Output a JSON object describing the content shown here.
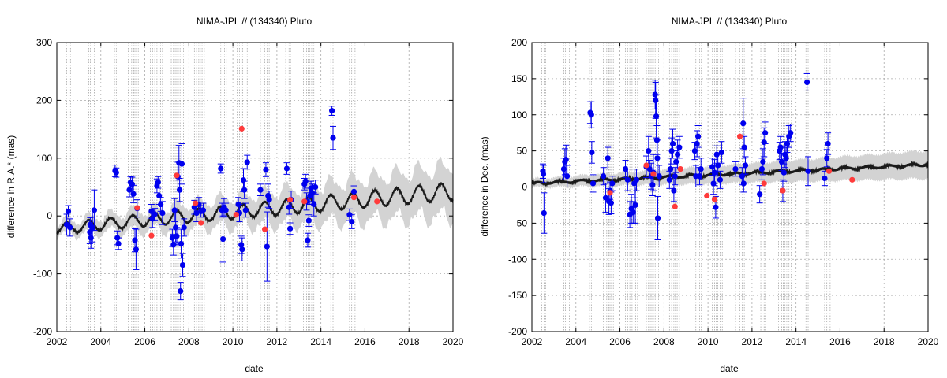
{
  "colors": {
    "obs": "#0000ee",
    "obs_highlight": "#ff3b3b",
    "model": "#1a1a1a",
    "band": "#d3d3d3",
    "grid": "#aaaaaa",
    "epoch_lines": "#9a9a9a"
  },
  "chart_data": [
    {
      "type": "scatter",
      "title": "NIMA-JPL // (134340) Pluto",
      "xlabel": "date",
      "ylabel": "difference in R.A.* (mas)",
      "xlim": [
        2002,
        2020
      ],
      "ylim": [
        -200,
        300
      ],
      "xticks": [
        "2002",
        "2004",
        "2006",
        "2008",
        "2010",
        "2012",
        "2014",
        "2016",
        "2018",
        "2020"
      ],
      "yticks": [
        "-200",
        "-100",
        "0",
        "100",
        "200",
        "300"
      ],
      "grid": true,
      "epoch_lines": [
        2002.45,
        2002.55,
        2002.62,
        2003.45,
        2003.52,
        2003.6,
        2003.7,
        2004.62,
        2004.7,
        2004.78,
        2005.25,
        2005.4,
        2005.5,
        2005.55,
        2005.62,
        2005.7,
        2006.25,
        2006.35,
        2006.45,
        2006.55,
        2006.65,
        2006.72,
        2006.8,
        2007.2,
        2007.3,
        2007.38,
        2007.45,
        2007.52,
        2007.6,
        2007.68,
        2007.75,
        2008.25,
        2008.35,
        2008.45,
        2008.52,
        2008.6,
        2008.7,
        2009.45,
        2009.55,
        2009.62,
        2009.7,
        2010.2,
        2010.3,
        2010.38,
        2010.45,
        2010.55,
        2010.65,
        2011.25,
        2011.45,
        2011.55,
        2011.65,
        2012.4,
        2012.55,
        2012.62,
        2013.2,
        2013.35,
        2013.42,
        2013.5,
        2013.58,
        2013.68,
        2013.78,
        2014.45,
        2014.55,
        2015.3,
        2015.4,
        2015.5,
        2015.55
      ],
      "observations": [
        [
          2002.45,
          -15,
          18
        ],
        [
          2002.52,
          8,
          10
        ],
        [
          2002.6,
          -20,
          15
        ],
        [
          2003.5,
          -28,
          20
        ],
        [
          2003.52,
          -15,
          12
        ],
        [
          2003.55,
          -38,
          18
        ],
        [
          2003.62,
          -20,
          25
        ],
        [
          2003.7,
          10,
          35
        ],
        [
          2004.65,
          78,
          10
        ],
        [
          2004.7,
          75,
          8
        ],
        [
          2004.75,
          -38,
          12
        ],
        [
          2004.8,
          -48,
          10
        ],
        [
          2005.3,
          45,
          12
        ],
        [
          2005.35,
          58,
          10
        ],
        [
          2005.42,
          55,
          12
        ],
        [
          2005.48,
          38,
          15
        ],
        [
          2005.55,
          -42,
          20
        ],
        [
          2005.6,
          -58,
          35
        ],
        [
          2005.65,
          13,
          15
        ],
        [
          2006.3,
          8,
          12
        ],
        [
          2006.35,
          -5,
          15
        ],
        [
          2006.45,
          3,
          10
        ],
        [
          2006.55,
          52,
          12
        ],
        [
          2006.6,
          58,
          10
        ],
        [
          2006.65,
          35,
          15
        ],
        [
          2006.72,
          20,
          12
        ],
        [
          2006.8,
          5,
          20
        ],
        [
          2007.25,
          -38,
          15
        ],
        [
          2007.3,
          -50,
          18
        ],
        [
          2007.35,
          10,
          20
        ],
        [
          2007.4,
          -20,
          25
        ],
        [
          2007.45,
          -35,
          15
        ],
        [
          2007.5,
          68,
          25
        ],
        [
          2007.55,
          92,
          30
        ],
        [
          2007.58,
          45,
          20
        ],
        [
          2007.62,
          -130,
          15
        ],
        [
          2007.65,
          -48,
          25
        ],
        [
          2007.68,
          90,
          35
        ],
        [
          2007.72,
          -85,
          20
        ],
        [
          2007.78,
          -20,
          15
        ],
        [
          2008.25,
          15,
          12
        ],
        [
          2008.35,
          5,
          15
        ],
        [
          2008.45,
          20,
          12
        ],
        [
          2008.55,
          8,
          10
        ],
        [
          2008.65,
          10,
          12
        ],
        [
          2009.45,
          82,
          8
        ],
        [
          2009.5,
          10,
          12
        ],
        [
          2009.55,
          -40,
          40
        ],
        [
          2009.6,
          15,
          15
        ],
        [
          2009.68,
          10,
          12
        ],
        [
          2010.25,
          20,
          12
        ],
        [
          2010.3,
          5,
          15
        ],
        [
          2010.38,
          -50,
          15
        ],
        [
          2010.42,
          -58,
          20
        ],
        [
          2010.48,
          62,
          20
        ],
        [
          2010.52,
          45,
          15
        ],
        [
          2010.58,
          10,
          12
        ],
        [
          2010.65,
          93,
          12
        ],
        [
          2011.25,
          45,
          10
        ],
        [
          2011.5,
          80,
          12
        ],
        [
          2011.55,
          -53,
          60
        ],
        [
          2011.6,
          35,
          20
        ],
        [
          2011.65,
          28,
          15
        ],
        [
          2012.45,
          82,
          10
        ],
        [
          2012.55,
          15,
          12
        ],
        [
          2012.6,
          -22,
          10
        ],
        [
          2012.65,
          28,
          15
        ],
        [
          2013.25,
          55,
          10
        ],
        [
          2013.3,
          60,
          12
        ],
        [
          2013.35,
          25,
          15
        ],
        [
          2013.4,
          -42,
          12
        ],
        [
          2013.45,
          -8,
          10
        ],
        [
          2013.5,
          35,
          15
        ],
        [
          2013.55,
          48,
          12
        ],
        [
          2013.6,
          40,
          15
        ],
        [
          2013.68,
          20,
          20
        ],
        [
          2013.75,
          50,
          12
        ],
        [
          2014.5,
          182,
          8
        ],
        [
          2014.55,
          135,
          20
        ],
        [
          2015.3,
          2,
          10
        ],
        [
          2015.4,
          -10,
          12
        ],
        [
          2015.5,
          42,
          10
        ]
      ],
      "highlighted": [
        [
          2005.65,
          14
        ],
        [
          2006.3,
          -34
        ],
        [
          2007.45,
          70
        ],
        [
          2008.3,
          22
        ],
        [
          2008.55,
          -12
        ],
        [
          2010.15,
          2
        ],
        [
          2010.4,
          151
        ],
        [
          2011.45,
          -23
        ],
        [
          2012.6,
          28
        ],
        [
          2013.25,
          25
        ],
        [
          2015.5,
          32
        ],
        [
          2016.55,
          25
        ]
      ]
    },
    {
      "type": "scatter",
      "title": "NIMA-JPL // (134340) Pluto",
      "xlabel": "date",
      "ylabel": "difference in Dec. (mas)",
      "xlim": [
        2002,
        2020
      ],
      "ylim": [
        -200,
        200
      ],
      "xticks": [
        "2002",
        "2004",
        "2006",
        "2008",
        "2010",
        "2012",
        "2014",
        "2016",
        "2018",
        "2020"
      ],
      "yticks": [
        "-200",
        "-150",
        "-100",
        "-50",
        "0",
        "50",
        "100",
        "150",
        "200"
      ],
      "grid": true,
      "epoch_lines": [
        2002.45,
        2002.55,
        2002.62,
        2003.45,
        2003.52,
        2003.6,
        2003.7,
        2004.62,
        2004.7,
        2004.78,
        2005.25,
        2005.4,
        2005.5,
        2005.55,
        2005.62,
        2005.7,
        2006.25,
        2006.35,
        2006.45,
        2006.55,
        2006.65,
        2006.72,
        2006.8,
        2007.2,
        2007.3,
        2007.38,
        2007.45,
        2007.52,
        2007.6,
        2007.68,
        2007.75,
        2008.25,
        2008.35,
        2008.45,
        2008.52,
        2008.6,
        2008.7,
        2009.45,
        2009.55,
        2009.62,
        2009.7,
        2010.2,
        2010.3,
        2010.38,
        2010.45,
        2010.55,
        2010.65,
        2011.25,
        2011.45,
        2011.55,
        2011.65,
        2012.4,
        2012.55,
        2012.62,
        2013.2,
        2013.35,
        2013.42,
        2013.5,
        2013.58,
        2013.68,
        2013.78,
        2014.45,
        2014.55,
        2015.3,
        2015.4,
        2015.5,
        2015.55
      ],
      "observations": [
        [
          2002.5,
          22,
          10
        ],
        [
          2002.52,
          18,
          12
        ],
        [
          2002.55,
          -36,
          28
        ],
        [
          2003.45,
          25,
          15
        ],
        [
          2003.5,
          35,
          18
        ],
        [
          2003.55,
          38,
          20
        ],
        [
          2003.6,
          15,
          15
        ],
        [
          2004.65,
          103,
          15
        ],
        [
          2004.7,
          100,
          18
        ],
        [
          2004.72,
          48,
          15
        ],
        [
          2004.78,
          5,
          12
        ],
        [
          2005.25,
          15,
          12
        ],
        [
          2005.35,
          -15,
          20
        ],
        [
          2005.45,
          40,
          15
        ],
        [
          2005.5,
          -20,
          18
        ],
        [
          2005.55,
          -5,
          12
        ],
        [
          2005.6,
          -22,
          15
        ],
        [
          2005.65,
          5,
          10
        ],
        [
          2006.25,
          25,
          12
        ],
        [
          2006.35,
          10,
          15
        ],
        [
          2006.45,
          -38,
          18
        ],
        [
          2006.52,
          -30,
          20
        ],
        [
          2006.6,
          -35,
          15
        ],
        [
          2006.65,
          5,
          20
        ],
        [
          2006.7,
          -25,
          25
        ],
        [
          2006.75,
          10,
          15
        ],
        [
          2007.2,
          28,
          15
        ],
        [
          2007.3,
          50,
          20
        ],
        [
          2007.35,
          25,
          12
        ],
        [
          2007.42,
          15,
          18
        ],
        [
          2007.48,
          3,
          15
        ],
        [
          2007.52,
          20,
          25
        ],
        [
          2007.6,
          128,
          20
        ],
        [
          2007.62,
          120,
          25
        ],
        [
          2007.65,
          98,
          30
        ],
        [
          2007.68,
          65,
          20
        ],
        [
          2007.7,
          40,
          25
        ],
        [
          2007.72,
          -43,
          30
        ],
        [
          2007.78,
          15,
          15
        ],
        [
          2008.25,
          10,
          12
        ],
        [
          2008.3,
          25,
          15
        ],
        [
          2008.35,
          50,
          18
        ],
        [
          2008.4,
          60,
          20
        ],
        [
          2008.45,
          -5,
          15
        ],
        [
          2008.5,
          15,
          12
        ],
        [
          2008.55,
          35,
          15
        ],
        [
          2008.62,
          45,
          20
        ],
        [
          2008.7,
          55,
          15
        ],
        [
          2009.4,
          50,
          12
        ],
        [
          2009.45,
          15,
          15
        ],
        [
          2009.5,
          60,
          18
        ],
        [
          2009.55,
          70,
          15
        ],
        [
          2009.62,
          15,
          12
        ],
        [
          2009.68,
          25,
          15
        ],
        [
          2010.2,
          28,
          12
        ],
        [
          2010.25,
          5,
          15
        ],
        [
          2010.3,
          20,
          18
        ],
        [
          2010.35,
          -28,
          15
        ],
        [
          2010.4,
          45,
          12
        ],
        [
          2010.45,
          30,
          15
        ],
        [
          2010.55,
          10,
          12
        ],
        [
          2010.62,
          48,
          15
        ],
        [
          2011.25,
          25,
          10
        ],
        [
          2011.55,
          15,
          12
        ],
        [
          2011.6,
          88,
          35
        ],
        [
          2011.62,
          5,
          12
        ],
        [
          2011.65,
          55,
          15
        ],
        [
          2011.7,
          30,
          12
        ],
        [
          2012.35,
          -10,
          12
        ],
        [
          2012.45,
          25,
          15
        ],
        [
          2012.5,
          35,
          18
        ],
        [
          2012.55,
          62,
          20
        ],
        [
          2012.6,
          75,
          15
        ],
        [
          2013.25,
          50,
          12
        ],
        [
          2013.3,
          55,
          15
        ],
        [
          2013.35,
          35,
          12
        ],
        [
          2013.4,
          -5,
          15
        ],
        [
          2013.45,
          20,
          12
        ],
        [
          2013.5,
          45,
          18
        ],
        [
          2013.55,
          40,
          15
        ],
        [
          2013.6,
          60,
          12
        ],
        [
          2013.68,
          70,
          15
        ],
        [
          2013.75,
          75,
          12
        ],
        [
          2014.5,
          145,
          12
        ],
        [
          2014.55,
          22,
          20
        ],
        [
          2015.3,
          12,
          10
        ],
        [
          2015.4,
          40,
          12
        ],
        [
          2015.45,
          60,
          15
        ]
      ],
      "highlighted": [
        [
          2005.55,
          -8
        ],
        [
          2007.2,
          30
        ],
        [
          2007.52,
          18
        ],
        [
          2008.5,
          -27
        ],
        [
          2008.75,
          25
        ],
        [
          2009.95,
          -12
        ],
        [
          2010.3,
          -17
        ],
        [
          2011.45,
          70
        ],
        [
          2012.55,
          5
        ],
        [
          2013.4,
          -5
        ],
        [
          2015.5,
          22
        ],
        [
          2016.55,
          10
        ]
      ]
    }
  ]
}
